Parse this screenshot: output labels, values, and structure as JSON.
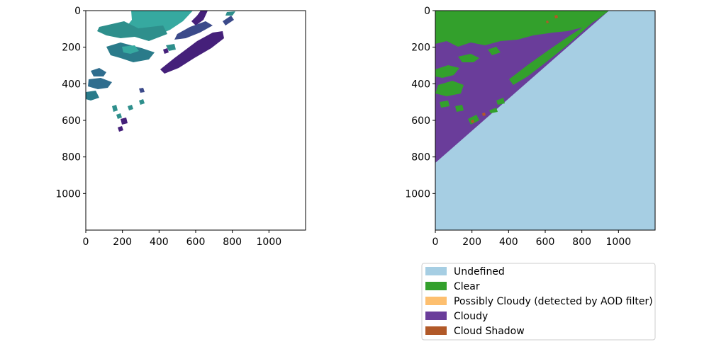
{
  "chart_data": [
    {
      "type": "heatmap",
      "title": "",
      "xlabel": "",
      "ylabel": "",
      "xlim": [
        0,
        1200
      ],
      "ylim": [
        1200,
        0
      ],
      "x_ticks": [
        0,
        200,
        400,
        600,
        800,
        1000
      ],
      "y_ticks": [
        0,
        200,
        400,
        600,
        800,
        1000
      ],
      "colors": {
        "light_teal": "#36a9a0",
        "teal": "#2e8f8c",
        "deep_teal": "#2a7b8a",
        "steel": "#2f6d8e",
        "navy": "#3b4a8a",
        "purple": "#45207a"
      }
    },
    {
      "type": "heatmap",
      "title": "",
      "xlabel": "",
      "ylabel": "",
      "xlim": [
        0,
        1200
      ],
      "ylim": [
        1200,
        0
      ],
      "x_ticks": [
        0,
        200,
        400,
        600,
        800,
        1000
      ],
      "y_ticks": [
        0,
        200,
        400,
        600,
        800,
        1000
      ],
      "legend_position": "below",
      "legend": [
        {
          "label": "Undefined",
          "color": "#a6cee3"
        },
        {
          "label": "Clear",
          "color": "#33a02c"
        },
        {
          "label": "Possibly Cloudy (detected by AOD filter)",
          "color": "#fdbf6f"
        },
        {
          "label": "Cloudy",
          "color": "#6a3d9a"
        },
        {
          "label": "Cloud Shadow",
          "color": "#b15928"
        }
      ]
    }
  ]
}
